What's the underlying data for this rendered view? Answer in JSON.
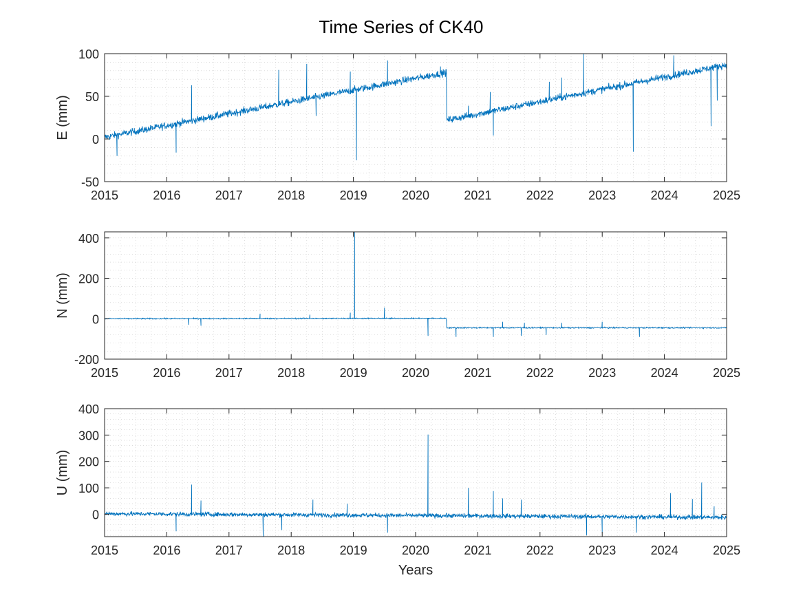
{
  "figure": {
    "title": "Time Series of CK40"
  },
  "chart_data": [
    {
      "type": "line",
      "ylabel": "E (mm)",
      "xlabel": "",
      "xlim": [
        2015,
        2025
      ],
      "ylim": [
        -50,
        100
      ],
      "xticks": [
        2015,
        2016,
        2017,
        2018,
        2019,
        2020,
        2021,
        2022,
        2023,
        2024,
        2025
      ],
      "yticks": [
        -50,
        0,
        50,
        100
      ],
      "grid": true,
      "minor_grid": true,
      "segments": [
        {
          "x": [
            2015.0,
            2020.5
          ],
          "y": [
            2,
            78
          ]
        },
        {
          "x": [
            2020.5,
            2025.0
          ],
          "y": [
            22,
            87
          ]
        }
      ],
      "noise": 3,
      "spikes": [
        {
          "x": 2015.2,
          "y": -20
        },
        {
          "x": 2016.15,
          "y": -16
        },
        {
          "x": 2016.4,
          "y": 63
        },
        {
          "x": 2017.8,
          "y": 81
        },
        {
          "x": 2018.25,
          "y": 88
        },
        {
          "x": 2018.4,
          "y": 27
        },
        {
          "x": 2018.95,
          "y": 79
        },
        {
          "x": 2019.05,
          "y": -25
        },
        {
          "x": 2019.55,
          "y": 92
        },
        {
          "x": 2020.4,
          "y": 85
        },
        {
          "x": 2020.85,
          "y": 39
        },
        {
          "x": 2021.2,
          "y": 55
        },
        {
          "x": 2021.25,
          "y": 4
        },
        {
          "x": 2022.15,
          "y": 67
        },
        {
          "x": 2022.35,
          "y": 72
        },
        {
          "x": 2022.7,
          "y": 100
        },
        {
          "x": 2023.5,
          "y": -15
        },
        {
          "x": 2024.15,
          "y": 98
        },
        {
          "x": 2024.75,
          "y": 15
        },
        {
          "x": 2024.85,
          "y": 45
        }
      ],
      "color": "#0072BD"
    },
    {
      "type": "line",
      "ylabel": "N (mm)",
      "xlabel": "",
      "xlim": [
        2015,
        2025
      ],
      "ylim": [
        -200,
        430
      ],
      "xticks": [
        2015,
        2016,
        2017,
        2018,
        2019,
        2020,
        2021,
        2022,
        2023,
        2024,
        2025
      ],
      "yticks": [
        -200,
        0,
        200,
        400
      ],
      "grid": true,
      "minor_grid": true,
      "segments": [
        {
          "x": [
            2015.0,
            2020.5
          ],
          "y": [
            0,
            2
          ]
        },
        {
          "x": [
            2020.5,
            2025.0
          ],
          "y": [
            -45,
            -45
          ]
        }
      ],
      "noise": 2,
      "spikes": [
        {
          "x": 2016.35,
          "y": -30
        },
        {
          "x": 2016.55,
          "y": -35
        },
        {
          "x": 2017.5,
          "y": 25
        },
        {
          "x": 2018.3,
          "y": 20
        },
        {
          "x": 2018.95,
          "y": 30
        },
        {
          "x": 2019.02,
          "y": 430
        },
        {
          "x": 2019.5,
          "y": 55
        },
        {
          "x": 2020.2,
          "y": -85
        },
        {
          "x": 2020.65,
          "y": -90
        },
        {
          "x": 2021.25,
          "y": -90
        },
        {
          "x": 2021.4,
          "y": -15
        },
        {
          "x": 2021.7,
          "y": -85
        },
        {
          "x": 2021.75,
          "y": -20
        },
        {
          "x": 2022.1,
          "y": -80
        },
        {
          "x": 2022.35,
          "y": -20
        },
        {
          "x": 2023.0,
          "y": -15
        },
        {
          "x": 2023.6,
          "y": -90
        }
      ],
      "color": "#0072BD"
    },
    {
      "type": "line",
      "ylabel": "U (mm)",
      "xlabel": "Years",
      "xlim": [
        2015,
        2025
      ],
      "ylim": [
        -85,
        400
      ],
      "xticks": [
        2015,
        2016,
        2017,
        2018,
        2019,
        2020,
        2021,
        2022,
        2023,
        2024,
        2025
      ],
      "yticks": [
        0,
        100,
        200,
        300,
        400
      ],
      "grid": true,
      "minor_grid": true,
      "segments": [
        {
          "x": [
            2015.0,
            2025.0
          ],
          "y": [
            2,
            -12
          ]
        }
      ],
      "noise": 6,
      "spikes": [
        {
          "x": 2016.15,
          "y": -65
        },
        {
          "x": 2016.4,
          "y": 112
        },
        {
          "x": 2016.55,
          "y": 52
        },
        {
          "x": 2017.55,
          "y": -85
        },
        {
          "x": 2017.85,
          "y": -60
        },
        {
          "x": 2018.35,
          "y": 55
        },
        {
          "x": 2018.9,
          "y": 40
        },
        {
          "x": 2019.55,
          "y": -70
        },
        {
          "x": 2020.2,
          "y": 302
        },
        {
          "x": 2020.85,
          "y": 100
        },
        {
          "x": 2021.25,
          "y": 88
        },
        {
          "x": 2021.4,
          "y": 60
        },
        {
          "x": 2021.7,
          "y": 55
        },
        {
          "x": 2022.75,
          "y": -80
        },
        {
          "x": 2023.0,
          "y": -70
        },
        {
          "x": 2023.55,
          "y": -70
        },
        {
          "x": 2024.1,
          "y": 80
        },
        {
          "x": 2024.45,
          "y": 58
        },
        {
          "x": 2024.6,
          "y": 120
        },
        {
          "x": 2024.8,
          "y": 30
        }
      ],
      "color": "#0072BD"
    }
  ]
}
